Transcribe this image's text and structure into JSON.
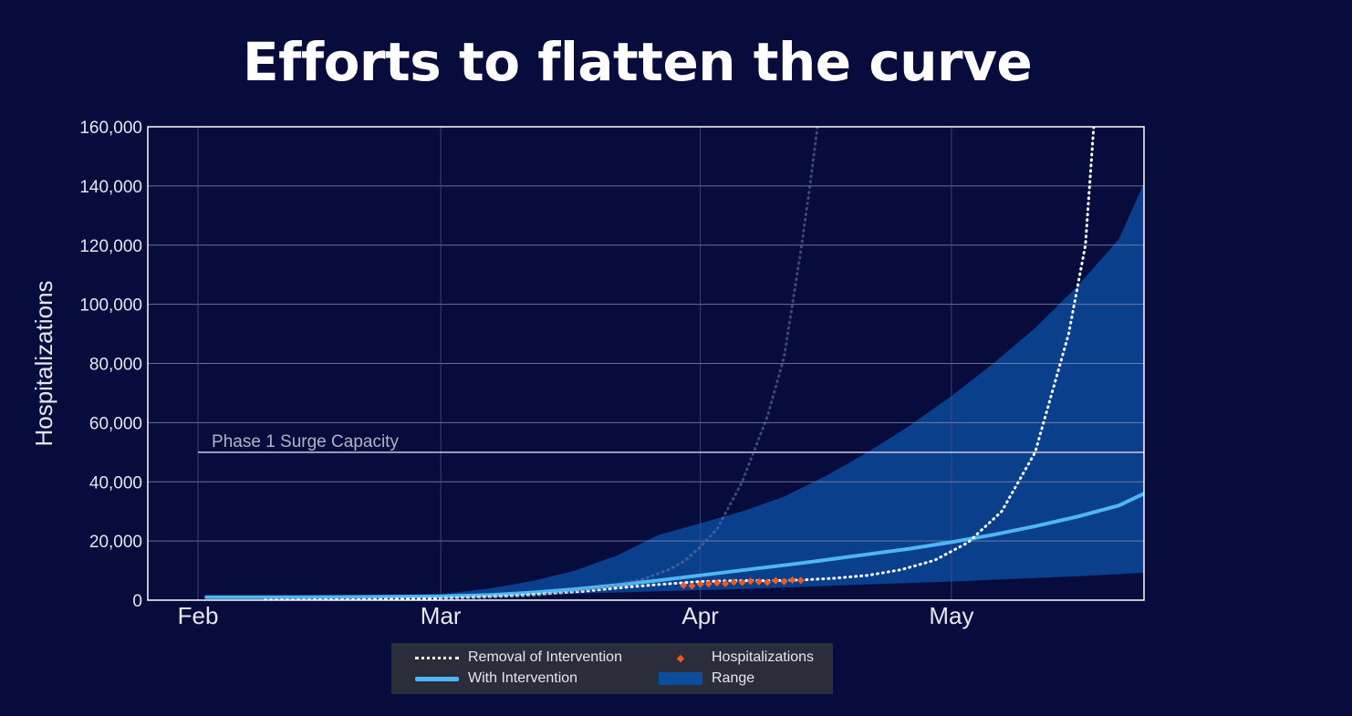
{
  "title": "Efforts to flatten the curve",
  "chart_data": {
    "type": "line",
    "title": "Efforts to flatten the curve",
    "ylabel": "Hospitalizations",
    "xlabel": "",
    "ylim": [
      0,
      160000
    ],
    "y_ticks": [
      0,
      20000,
      40000,
      60000,
      80000,
      100000,
      120000,
      140000,
      160000
    ],
    "y_tick_labels": [
      "0",
      "20,000",
      "40,000",
      "60,000",
      "80,000",
      "100,000",
      "120,000",
      "140,000",
      "160,000"
    ],
    "x_ticks": [
      "Feb",
      "Mar",
      "Apr",
      "May"
    ],
    "x_tick_days": [
      0,
      29,
      60,
      90
    ],
    "xlim_days": [
      -6,
      113
    ],
    "grid": true,
    "reference_line": {
      "label": "Phase 1 Surge Capacity",
      "value": 50000
    },
    "series": [
      {
        "name": "With Intervention",
        "style": "solid",
        "color": "#4fb6f5",
        "x_days": [
          1,
          10,
          20,
          29,
          35,
          40,
          45,
          50,
          55,
          60,
          65,
          70,
          75,
          80,
          85,
          90,
          95,
          100,
          105,
          110,
          113
        ],
        "values": [
          1000,
          1000,
          1100,
          1300,
          1800,
          2600,
          3700,
          5100,
          6700,
          8400,
          10100,
          11800,
          13600,
          15500,
          17400,
          19600,
          22100,
          25000,
          28200,
          32000,
          36000
        ]
      },
      {
        "name": "Removal of Intervention",
        "style": "dotted",
        "color": "#ffffff",
        "x_days": [
          8,
          20,
          29,
          38,
          46,
          52,
          56,
          60,
          64,
          68,
          72,
          76,
          80,
          84,
          88,
          92,
          96,
          100,
          104,
          106,
          107
        ],
        "values": [
          0,
          200,
          600,
          1500,
          3000,
          4600,
          5500,
          6300,
          6600,
          6600,
          6800,
          7400,
          8400,
          10300,
          13500,
          19500,
          30000,
          50000,
          90000,
          120000,
          160000
        ]
      },
      {
        "name": "",
        "style": "dotted-faint",
        "color": "#6b7aa8",
        "x_days": [
          29,
          40,
          48,
          53,
          56,
          58,
          60,
          62,
          65,
          68,
          70,
          71,
          72,
          73,
          74
        ],
        "values": [
          300,
          1500,
          4000,
          7000,
          10000,
          13000,
          18000,
          24000,
          40000,
          62000,
          82000,
          100000,
          118000,
          138000,
          160000
        ]
      },
      {
        "name": "Hospitalizations",
        "style": "markers",
        "color": "#f05a22",
        "x_days": [
          58,
          59,
          60,
          61,
          62,
          63,
          64,
          65,
          66,
          67,
          68,
          69,
          70,
          71,
          72
        ],
        "values": [
          5000,
          4800,
          5400,
          5500,
          5800,
          5600,
          6100,
          6000,
          6400,
          6200,
          6000,
          6600,
          6300,
          6800,
          6700
        ]
      }
    ],
    "range": {
      "name": "Range",
      "color": "#0a3f8c",
      "x_days": [
        1,
        10,
        20,
        29,
        35,
        40,
        45,
        50,
        55,
        60,
        65,
        70,
        75,
        80,
        85,
        90,
        95,
        100,
        105,
        110,
        113
      ],
      "upper": [
        1000,
        1200,
        1500,
        2000,
        4000,
        6500,
        10000,
        15000,
        22000,
        26000,
        30000,
        35000,
        42000,
        50000,
        59000,
        69000,
        80000,
        92000,
        106000,
        122000,
        141000
      ],
      "lower": [
        1000,
        1000,
        1000,
        1100,
        1300,
        1700,
        2200,
        2600,
        3000,
        3400,
        3800,
        4300,
        4800,
        5300,
        5800,
        6300,
        6900,
        7500,
        8100,
        8800,
        9300
      ]
    },
    "legend": {
      "placement": "bottom",
      "items": [
        {
          "label": "Removal of Intervention",
          "icon": "dotted-line"
        },
        {
          "label": "Hospitalizations",
          "icon": "diamond-marker"
        },
        {
          "label": "With Intervention",
          "icon": "solid-line"
        },
        {
          "label": "Range",
          "icon": "range-swatch"
        }
      ]
    }
  }
}
